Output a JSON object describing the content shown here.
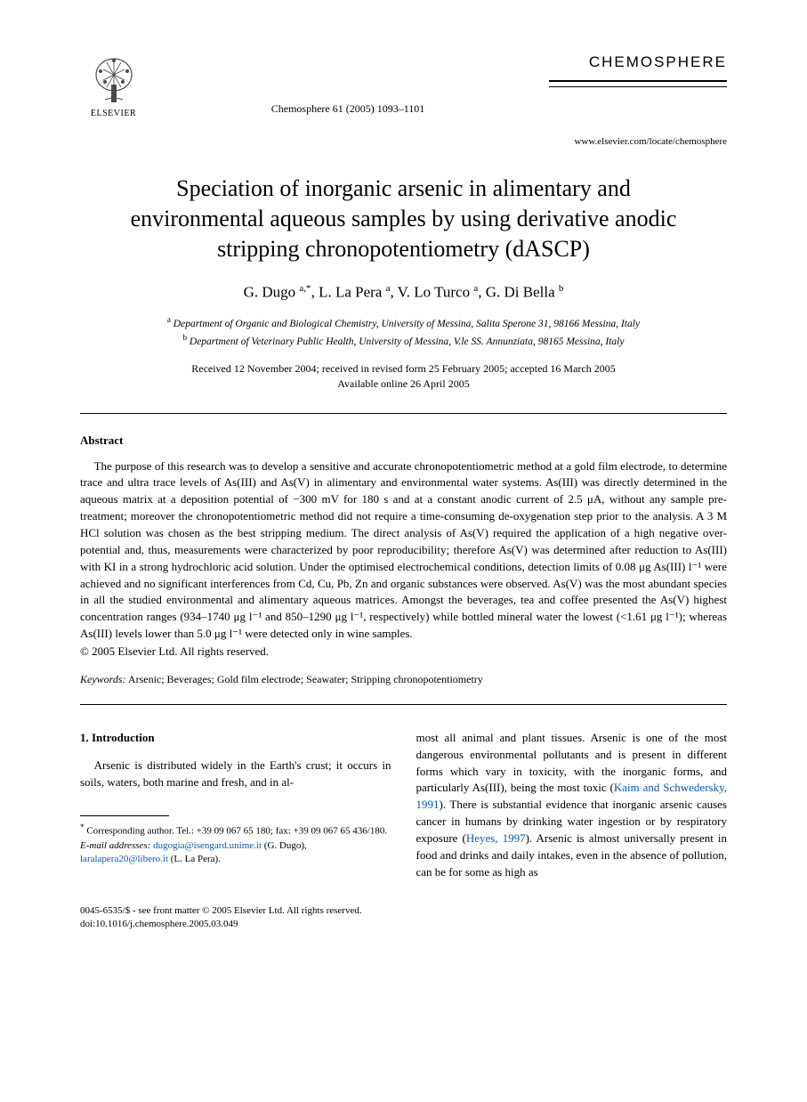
{
  "header": {
    "publisher_name": "ELSEVIER",
    "journal_ref": "Chemosphere 61 (2005) 1093–1101",
    "journal_brand": "CHEMOSPHERE",
    "locate_url": "www.elsevier.com/locate/chemosphere"
  },
  "title": "Speciation of inorganic arsenic in alimentary and environmental aqueous samples by using derivative anodic stripping chronopotentiometry (dASCP)",
  "authors_html": "G. Dugo <sup>a,*</sup>, L. La Pera <sup>a</sup>, V. Lo Turco <sup>a</sup>, G. Di Bella <sup>b</sup>",
  "affiliations": {
    "a": "Department of Organic and Biological Chemistry, University of Messina, Salita Sperone 31, 98166 Messina, Italy",
    "b": "Department of Veterinary Public Health, University of Messina, V.le SS. Annunziata, 98165 Messina, Italy"
  },
  "dates": {
    "line1": "Received 12 November 2004; received in revised form 25 February 2005; accepted 16 March 2005",
    "line2": "Available online 26 April 2005"
  },
  "abstract": {
    "heading": "Abstract",
    "body": "The purpose of this research was to develop a sensitive and accurate chronopotentiometric method at a gold film electrode, to determine trace and ultra trace levels of As(III) and As(V) in alimentary and environmental water systems. As(III) was directly determined in the aqueous matrix at a deposition potential of −300 mV for 180 s and at a constant anodic current of 2.5 μA, without any sample pre-treatment; moreover the chronopotentiometric method did not require a time-consuming de-oxygenation step prior to the analysis. A 3 M HCl solution was chosen as the best stripping medium. The direct analysis of As(V) required the application of a high negative over-potential and, thus, measurements were characterized by poor reproducibility; therefore As(V) was determined after reduction to As(III) with KI in a strong hydrochloric acid solution. Under the optimised electrochemical conditions, detection limits of 0.08 μg As(III) l⁻¹ were achieved and no significant interferences from Cd, Cu, Pb, Zn and organic substances were observed. As(V) was the most abundant species in all the studied environmental and alimentary aqueous matrices. Amongst the beverages, tea and coffee presented the As(V) highest concentration ranges (934–1740 μg l⁻¹ and 850–1290 μg l⁻¹, respectively) while bottled mineral water the lowest (<1.61 μg l⁻¹); whereas As(III) levels lower than 5.0 μg l⁻¹ were detected only in wine samples.",
    "copyright": "© 2005 Elsevier Ltd. All rights reserved."
  },
  "keywords": {
    "label": "Keywords:",
    "text": "Arsenic; Beverages; Gold film electrode; Seawater; Stripping chronopotentiometry"
  },
  "introduction": {
    "heading": "1. Introduction",
    "col1": "Arsenic is distributed widely in the Earth's crust; it occurs in soils, waters, both marine and fresh, and in al-",
    "col2_part1": "most all animal and plant tissues. Arsenic is one of the most dangerous environmental pollutants and is present in different forms which vary in toxicity, with the inorganic forms, and particularly As(III), being the most toxic (",
    "ref1": "Kaim and Schwedersky, 1991",
    "col2_part2": "). There is substantial evidence that inorganic arsenic causes cancer in humans by drinking water ingestion or by respiratory exposure (",
    "ref2": "Heyes, 1997",
    "col2_part3": "). Arsenic is almost universally present in food and drinks and daily intakes, even in the absence of pollution, can be for some as high as"
  },
  "footnotes": {
    "corr": "Corresponding author. Tel.: +39 09 067 65 180; fax: +39 09 067 65 436/180.",
    "email_label": "E-mail addresses:",
    "email1": "dugogia@isengard.unime.it",
    "email1_who": "(G. Dugo),",
    "email2": "laralapera20@libero.it",
    "email2_who": "(L. La Pera)."
  },
  "bottom": {
    "front_matter": "0045-6535/$ - see front matter © 2005 Elsevier Ltd. All rights reserved.",
    "doi": "doi:10.1016/j.chemosphere.2005.03.049"
  },
  "colors": {
    "link": "#0a5aa6",
    "text": "#000000",
    "background": "#ffffff"
  }
}
